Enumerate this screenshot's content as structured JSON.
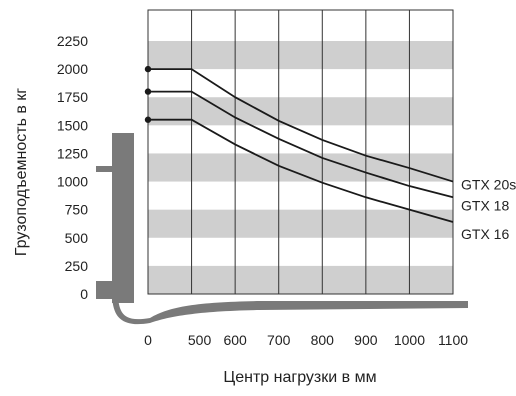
{
  "chart_data": {
    "type": "line",
    "title": "",
    "xlabel": "Центр нагрузки в мм",
    "ylabel": "Грузоподъемность в кг",
    "x_ticks": [
      "0",
      "500",
      "600",
      "700",
      "800",
      "900",
      "1000",
      "1100"
    ],
    "x": [
      0,
      500,
      600,
      700,
      800,
      900,
      1000,
      1100
    ],
    "ylim": [
      0,
      2250
    ],
    "y_ticks": [
      0,
      250,
      500,
      750,
      1000,
      1250,
      1500,
      1750,
      2000,
      2250
    ],
    "grid": "alternating horizontal bands, vertical grid lines",
    "series": [
      {
        "name": "GTX 20s",
        "values": [
          2000,
          2000,
          1750,
          1540,
          1370,
          1230,
          1120,
          1000
        ]
      },
      {
        "name": "GTX 18",
        "values": [
          1800,
          1800,
          1570,
          1380,
          1210,
          1080,
          960,
          860
        ]
      },
      {
        "name": "GTX 16",
        "values": [
          1550,
          1550,
          1330,
          1140,
          990,
          860,
          750,
          640
        ]
      }
    ],
    "colors": {
      "line": "#1a1a1a",
      "band": "#cfcfcf",
      "fork": "#7a7a7a"
    }
  }
}
